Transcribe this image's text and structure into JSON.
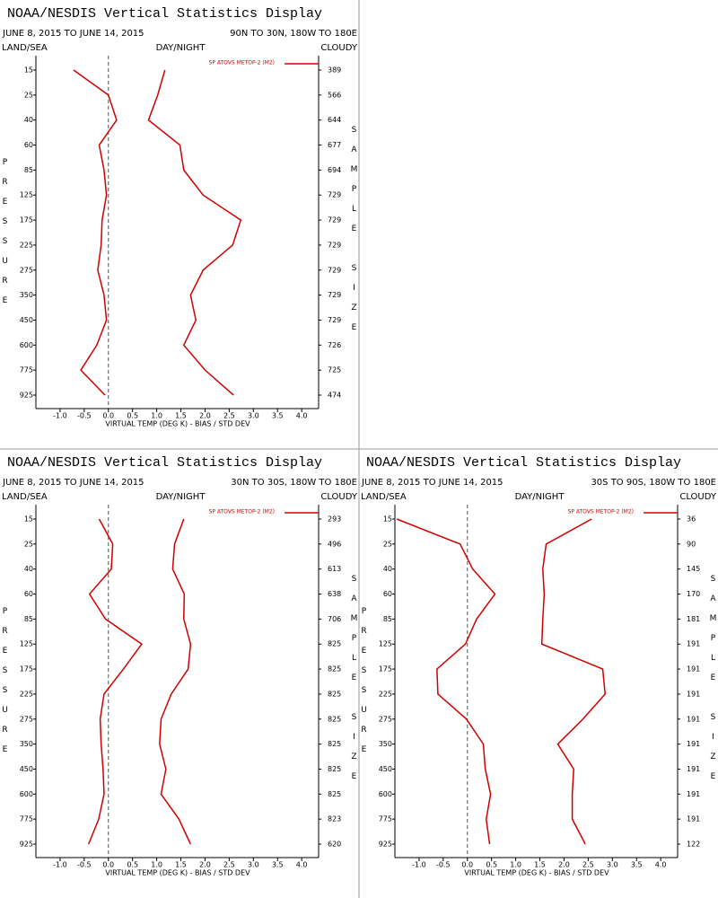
{
  "chart_data": [
    {
      "type": "line",
      "title": "NOAA/NESDIS Vertical Statistics Display",
      "dates": "JUNE 8, 2015 TO JUNE 14, 2015",
      "region": "90N TO 30N, 180W TO 180E",
      "land_sea": "LAND/SEA",
      "day_night": "DAY/NIGHT",
      "cloudy": "CLOUDY",
      "ylabel": "PRESSURE",
      "y2label": "SAMPLE SIZE",
      "xlabel": "VIRTUAL TEMP (DEG K) - BIAS / STD DEV",
      "legend": "SP ATOVS METOP-2 (M2)",
      "categories": [
        "15",
        "25",
        "40",
        "60",
        "85",
        "125",
        "175",
        "225",
        "275",
        "350",
        "450",
        "600",
        "775",
        "925"
      ],
      "sample_size": [
        "389",
        "566",
        "644",
        "677",
        "694",
        "729",
        "729",
        "729",
        "729",
        "729",
        "729",
        "726",
        "725",
        "474"
      ],
      "series": [
        {
          "color": "#d00000",
          "values": [
            -0.72,
            0.0,
            0.17,
            -0.19,
            -0.09,
            -0.04,
            -0.13,
            -0.15,
            -0.22,
            -0.09,
            -0.04,
            -0.24,
            -0.57,
            -0.07
          ]
        },
        {
          "color": "#d00000",
          "values": [
            1.17,
            1.02,
            0.83,
            1.48,
            1.56,
            1.96,
            2.74,
            2.57,
            1.96,
            1.7,
            1.81,
            1.56,
            2.0,
            2.59
          ]
        }
      ],
      "xlim": [
        -1.5,
        4.35
      ],
      "xticks": [
        {
          "value": -1.0,
          "label": "-1.0"
        },
        -0.5,
        {
          "value": 0.0,
          "label": "0.0"
        },
        0.5,
        {
          "value": 1.0,
          "label": "1.0"
        },
        1.5,
        {
          "value": 2.0,
          "label": "2.0"
        },
        2.5,
        {
          "value": 3.0,
          "label": "3.0"
        },
        3.5,
        {
          "value": 4.0,
          "label": "4.0"
        }
      ]
    },
    {
      "type": "line",
      "title": "NOAA/NESDIS Vertical Statistics Display",
      "dates": "JUNE 8, 2015 TO JUNE 14, 2015",
      "region": "30N TO 30S, 180W TO 180E",
      "land_sea": "LAND/SEA",
      "day_night": "DAY/NIGHT",
      "cloudy": "CLOUDY",
      "ylabel": "PRESSURE",
      "y2label": "SAMPLE SIZE",
      "xlabel": "VIRTUAL TEMP (DEG K) - BIAS / STD DEV",
      "legend": "SP ATOVS METOP-2 (M2)",
      "categories": [
        "15",
        "25",
        "40",
        "60",
        "85",
        "125",
        "175",
        "225",
        "275",
        "350",
        "450",
        "600",
        "775",
        "925"
      ],
      "sample_size": [
        "293",
        "496",
        "613",
        "638",
        "706",
        "825",
        "825",
        "825",
        "825",
        "825",
        "825",
        "825",
        "823",
        "620"
      ],
      "series": [
        {
          "color": "#d00000",
          "values": [
            -0.19,
            0.09,
            0.06,
            -0.39,
            -0.06,
            0.69,
            0.31,
            -0.09,
            -0.17,
            -0.15,
            -0.11,
            -0.09,
            -0.2,
            -0.41
          ]
        },
        {
          "color": "#d00000",
          "values": [
            1.56,
            1.37,
            1.33,
            1.57,
            1.56,
            1.7,
            1.65,
            1.3,
            1.09,
            1.06,
            1.19,
            1.09,
            1.46,
            1.7
          ]
        }
      ],
      "xlim": [
        -1.5,
        4.35
      ],
      "xticks": [
        {
          "value": -1.0,
          "label": "-1.0"
        },
        -0.5,
        {
          "value": 0.0,
          "label": "0.0"
        },
        0.5,
        {
          "value": 1.0,
          "label": "1.0"
        },
        1.5,
        {
          "value": 2.0,
          "label": "2.0"
        },
        2.5,
        {
          "value": 3.0,
          "label": "3.0"
        },
        3.5,
        {
          "value": 4.0,
          "label": "4.0"
        }
      ]
    },
    {
      "type": "line",
      "title": "NOAA/NESDIS Vertical Statistics Display",
      "dates": "JUNE 8, 2015 TO JUNE 14, 2015",
      "region": "30S TO 90S, 180W TO 180E",
      "land_sea": "LAND/SEA",
      "day_night": "DAY/NIGHT",
      "cloudy": "CLOUDY",
      "ylabel": "PRESSURE",
      "y2label": "SAMPLE SIZE",
      "xlabel": "VIRTUAL TEMP (DEG K) - BIAS / STD DEV",
      "legend": "SP ATOVS METOP-2 (M2)",
      "categories": [
        "15",
        "25",
        "40",
        "60",
        "85",
        "125",
        "175",
        "225",
        "275",
        "350",
        "450",
        "600",
        "775",
        "925"
      ],
      "sample_size": [
        "36",
        "90",
        "145",
        "170",
        "181",
        "191",
        "191",
        "191",
        "191",
        "191",
        "191",
        "191",
        "191",
        "122"
      ],
      "series": [
        {
          "color": "#d00000",
          "values": [
            -1.46,
            -0.15,
            0.11,
            0.57,
            0.19,
            -0.04,
            -0.63,
            -0.61,
            -0.02,
            0.33,
            0.37,
            0.48,
            0.39,
            0.46
          ]
        },
        {
          "color": "#d00000",
          "values": [
            2.57,
            1.63,
            1.56,
            1.59,
            1.56,
            1.54,
            2.8,
            2.85,
            2.39,
            1.87,
            2.2,
            2.17,
            2.17,
            2.44
          ]
        }
      ],
      "xlim": [
        -1.5,
        4.35
      ],
      "xticks": [
        {
          "value": -1.0,
          "label": "-1.0"
        },
        -0.5,
        {
          "value": 0.0,
          "label": "0.0"
        },
        0.5,
        {
          "value": 1.0,
          "label": "1.0"
        },
        1.5,
        {
          "value": 2.0,
          "label": "2.0"
        },
        2.5,
        {
          "value": 3.0,
          "label": "3.0"
        },
        3.5,
        {
          "value": 4.0,
          "label": "4.0"
        }
      ]
    }
  ]
}
